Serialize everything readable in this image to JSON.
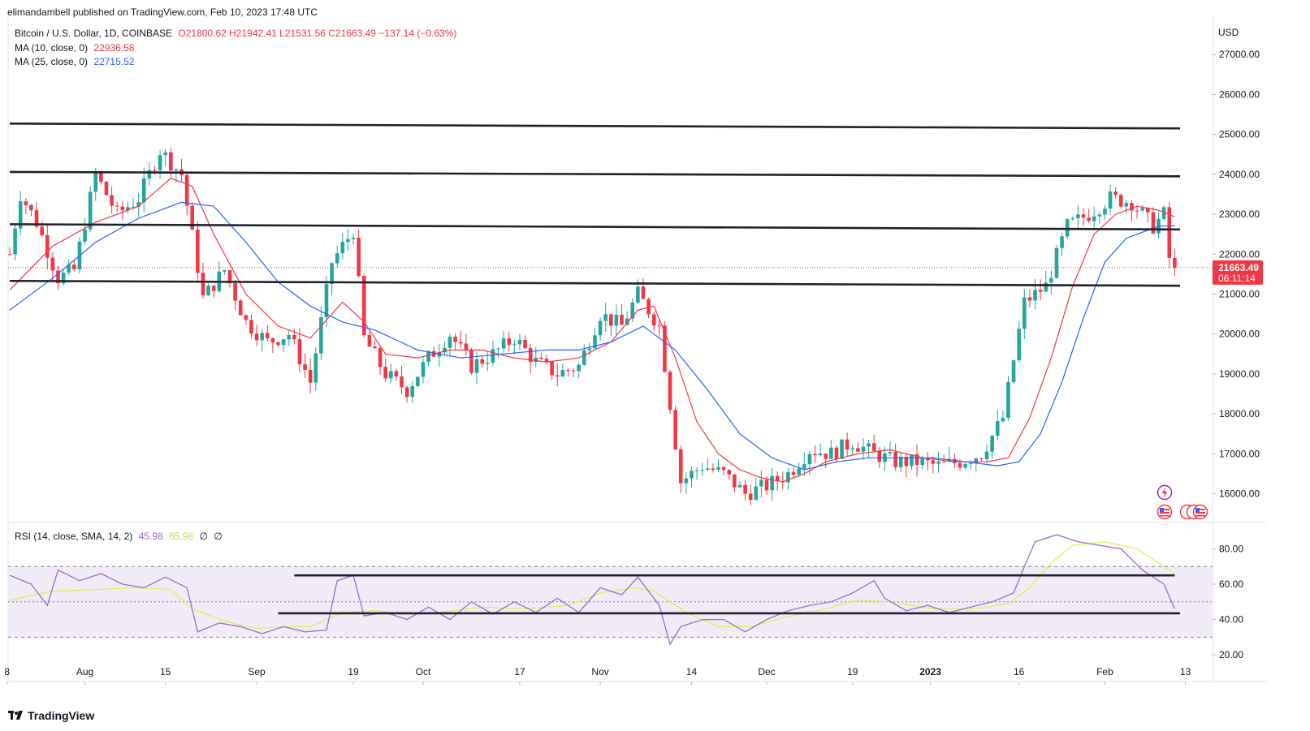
{
  "header": {
    "published": "elimandambell published on TradingView.com, Feb 10, 2023 17:48 UTC"
  },
  "legend": {
    "symbol": "Bitcoin / U.S. Dollar, 1D, COINBASE",
    "ohlc": "O21800.62  H21942.41  L21531.56  C21663.49  −137.14 (−0.63%)",
    "ma10_label": "MA (10, close, 0)",
    "ma10_value": "22936.58",
    "ma25_label": "MA (25, close, 0)",
    "ma25_value": "22715.52",
    "rsi_label": "RSI (14, close, SMA, 14, 2)",
    "rsi_value": "45.98",
    "rsi_sma_value": "65.98",
    "rsi_extra1": "∅",
    "rsi_extra2": "∅"
  },
  "colors": {
    "up": "#26a69a",
    "down": "#f23645",
    "ma10": "#f23645",
    "ma25": "#2962ff",
    "rsi": "#9c6bc9",
    "rsi_sma": "#e1f05a",
    "rsi_band": "#ede7f6",
    "trendline": "#1e222d"
  },
  "footer": {
    "brand": "TradingView"
  },
  "chart_data": [
    {
      "type": "candlestick",
      "title": "Bitcoin / U.S. Dollar, 1D, COINBASE",
      "currency_label": "USD",
      "y_range": [
        15300,
        28000
      ],
      "y_ticks": [
        "27000.00",
        "26000.00",
        "25000.00",
        "24000.00",
        "23000.00",
        "22000.00",
        "21000.00",
        "20000.00",
        "19000.00",
        "18000.00",
        "17000.00",
        "16000.00"
      ],
      "x_ticks": [
        "8",
        "Aug",
        "15",
        "Sep",
        "19",
        "Oct",
        "17",
        "Nov",
        "14",
        "Dec",
        "19",
        "2023",
        "16",
        "Feb",
        "13"
      ],
      "last_price": "21663.49",
      "countdown": "06:11:14",
      "path": [
        [
          0,
          22000
        ],
        [
          2,
          23500
        ],
        [
          5,
          22800
        ],
        [
          9,
          21400
        ],
        [
          12,
          21600
        ],
        [
          16,
          24000
        ],
        [
          20,
          23000
        ],
        [
          24,
          23400
        ],
        [
          28,
          24600
        ],
        [
          32,
          24000
        ],
        [
          36,
          20900
        ],
        [
          40,
          21600
        ],
        [
          44,
          20300
        ],
        [
          48,
          19800
        ],
        [
          52,
          20000
        ],
        [
          56,
          18800
        ],
        [
          60,
          21800
        ],
        [
          64,
          22600
        ],
        [
          66,
          19900
        ],
        [
          70,
          19000
        ],
        [
          74,
          18600
        ],
        [
          78,
          19400
        ],
        [
          82,
          20000
        ],
        [
          86,
          19200
        ],
        [
          90,
          19500
        ],
        [
          94,
          19900
        ],
        [
          98,
          19300
        ],
        [
          102,
          19000
        ],
        [
          106,
          19200
        ],
        [
          110,
          20500
        ],
        [
          114,
          20200
        ],
        [
          117,
          21000
        ],
        [
          121,
          20200
        ],
        [
          125,
          16300
        ],
        [
          129,
          16700
        ],
        [
          133,
          16500
        ],
        [
          137,
          16000
        ],
        [
          141,
          16200
        ],
        [
          145,
          16500
        ],
        [
          149,
          17100
        ],
        [
          153,
          17000
        ],
        [
          157,
          17300
        ],
        [
          161,
          17000
        ],
        [
          165,
          16800
        ],
        [
          169,
          16800
        ],
        [
          173,
          16700
        ],
        [
          177,
          16800
        ],
        [
          181,
          17000
        ],
        [
          185,
          17900
        ],
        [
          189,
          20800
        ],
        [
          193,
          21200
        ],
        [
          197,
          22700
        ],
        [
          201,
          23000
        ],
        [
          205,
          23400
        ],
        [
          209,
          23300
        ],
        [
          213,
          22700
        ],
        [
          215,
          23000
        ],
        [
          216,
          21900
        ],
        [
          217,
          21663
        ]
      ],
      "ma10_path": [
        [
          0,
          21100
        ],
        [
          8,
          22200
        ],
        [
          16,
          22800
        ],
        [
          24,
          23200
        ],
        [
          30,
          23900
        ],
        [
          34,
          23700
        ],
        [
          38,
          22500
        ],
        [
          44,
          21000
        ],
        [
          50,
          20200
        ],
        [
          56,
          19900
        ],
        [
          62,
          20800
        ],
        [
          66,
          20300
        ],
        [
          70,
          19500
        ],
        [
          76,
          19400
        ],
        [
          82,
          19600
        ],
        [
          88,
          19600
        ],
        [
          94,
          19400
        ],
        [
          100,
          19300
        ],
        [
          106,
          19400
        ],
        [
          112,
          19800
        ],
        [
          117,
          20600
        ],
        [
          120,
          20700
        ],
        [
          124,
          19400
        ],
        [
          128,
          17800
        ],
        [
          132,
          17000
        ],
        [
          136,
          16600
        ],
        [
          140,
          16400
        ],
        [
          144,
          16300
        ],
        [
          148,
          16500
        ],
        [
          152,
          16800
        ],
        [
          158,
          17000
        ],
        [
          164,
          17100
        ],
        [
          170,
          16900
        ],
        [
          176,
          16800
        ],
        [
          182,
          16800
        ],
        [
          186,
          16900
        ],
        [
          190,
          17900
        ],
        [
          194,
          19400
        ],
        [
          198,
          21200
        ],
        [
          202,
          22500
        ],
        [
          206,
          23000
        ],
        [
          210,
          23200
        ],
        [
          214,
          23100
        ],
        [
          217,
          22936
        ]
      ],
      "ma25_path": [
        [
          0,
          20600
        ],
        [
          8,
          21400
        ],
        [
          16,
          22300
        ],
        [
          24,
          22900
        ],
        [
          32,
          23300
        ],
        [
          38,
          23200
        ],
        [
          44,
          22300
        ],
        [
          50,
          21300
        ],
        [
          56,
          20700
        ],
        [
          62,
          20300
        ],
        [
          68,
          20100
        ],
        [
          76,
          19600
        ],
        [
          84,
          19400
        ],
        [
          92,
          19500
        ],
        [
          100,
          19600
        ],
        [
          106,
          19600
        ],
        [
          112,
          19800
        ],
        [
          118,
          20200
        ],
        [
          124,
          19600
        ],
        [
          130,
          18600
        ],
        [
          136,
          17500
        ],
        [
          142,
          16900
        ],
        [
          148,
          16600
        ],
        [
          154,
          16800
        ],
        [
          160,
          16900
        ],
        [
          166,
          16900
        ],
        [
          172,
          16900
        ],
        [
          178,
          16800
        ],
        [
          184,
          16700
        ],
        [
          188,
          16800
        ],
        [
          192,
          17500
        ],
        [
          196,
          18800
        ],
        [
          200,
          20400
        ],
        [
          204,
          21800
        ],
        [
          208,
          22400
        ],
        [
          214,
          22700
        ],
        [
          217,
          22715
        ]
      ],
      "trendlines": [
        {
          "from": [
            0,
            25270
          ],
          "to": [
            218,
            25150
          ]
        },
        {
          "from": [
            0,
            24060
          ],
          "to": [
            218,
            23950
          ]
        },
        {
          "from": [
            0,
            22750
          ],
          "to": [
            218,
            22620
          ]
        },
        {
          "from": [
            0,
            21330
          ],
          "to": [
            218,
            21210
          ]
        }
      ]
    },
    {
      "type": "line",
      "title": "RSI (14, close, SMA, 14, 2)",
      "y_range": [
        15,
        94
      ],
      "y_ticks": [
        "80.00",
        "60.00",
        "40.00",
        "20.00"
      ],
      "upper_band": 70,
      "middle_band": 50,
      "lower_band": 30,
      "rsi_path": [
        [
          0,
          65
        ],
        [
          4,
          60
        ],
        [
          7,
          48
        ],
        [
          9,
          68
        ],
        [
          13,
          62
        ],
        [
          17,
          66
        ],
        [
          21,
          60
        ],
        [
          25,
          58
        ],
        [
          29,
          64
        ],
        [
          33,
          58
        ],
        [
          35,
          33
        ],
        [
          39,
          38
        ],
        [
          43,
          36
        ],
        [
          47,
          32
        ],
        [
          51,
          36
        ],
        [
          55,
          33
        ],
        [
          59,
          34
        ],
        [
          61,
          62
        ],
        [
          64,
          65
        ],
        [
          66,
          42
        ],
        [
          70,
          44
        ],
        [
          74,
          40
        ],
        [
          78,
          47
        ],
        [
          82,
          40
        ],
        [
          86,
          50
        ],
        [
          90,
          43
        ],
        [
          94,
          50
        ],
        [
          98,
          44
        ],
        [
          102,
          52
        ],
        [
          106,
          44
        ],
        [
          110,
          58
        ],
        [
          114,
          54
        ],
        [
          117,
          64
        ],
        [
          121,
          48
        ],
        [
          123,
          26
        ],
        [
          125,
          36
        ],
        [
          129,
          40
        ],
        [
          133,
          40
        ],
        [
          137,
          33
        ],
        [
          141,
          40
        ],
        [
          145,
          45
        ],
        [
          149,
          48
        ],
        [
          153,
          50
        ],
        [
          157,
          55
        ],
        [
          161,
          62
        ],
        [
          163,
          52
        ],
        [
          167,
          45
        ],
        [
          171,
          48
        ],
        [
          175,
          44
        ],
        [
          179,
          47
        ],
        [
          183,
          50
        ],
        [
          187,
          55
        ],
        [
          189,
          70
        ],
        [
          191,
          84
        ],
        [
          195,
          88
        ],
        [
          199,
          84
        ],
        [
          203,
          82
        ],
        [
          207,
          80
        ],
        [
          211,
          68
        ],
        [
          215,
          60
        ],
        [
          217,
          46
        ]
      ],
      "rsi_sma_path": [
        [
          0,
          51
        ],
        [
          8,
          56
        ],
        [
          16,
          57
        ],
        [
          24,
          58
        ],
        [
          30,
          57
        ],
        [
          34,
          46
        ],
        [
          40,
          39
        ],
        [
          46,
          35
        ],
        [
          52,
          36
        ],
        [
          56,
          36
        ],
        [
          62,
          44
        ],
        [
          68,
          45
        ],
        [
          74,
          43
        ],
        [
          80,
          44
        ],
        [
          88,
          47
        ],
        [
          96,
          46
        ],
        [
          104,
          48
        ],
        [
          110,
          55
        ],
        [
          116,
          58
        ],
        [
          120,
          56
        ],
        [
          126,
          44
        ],
        [
          132,
          36
        ],
        [
          138,
          36
        ],
        [
          144,
          41
        ],
        [
          152,
          46
        ],
        [
          158,
          51
        ],
        [
          164,
          50
        ],
        [
          172,
          46
        ],
        [
          180,
          46
        ],
        [
          186,
          49
        ],
        [
          190,
          58
        ],
        [
          194,
          72
        ],
        [
          198,
          82
        ],
        [
          204,
          84
        ],
        [
          210,
          80
        ],
        [
          214,
          72
        ],
        [
          217,
          66
        ]
      ],
      "trendlines": [
        {
          "from": [
            53,
            65
          ],
          "to": [
            217,
            65
          ]
        },
        {
          "from": [
            50,
            43.5
          ],
          "to": [
            218,
            43.5
          ]
        }
      ]
    }
  ]
}
